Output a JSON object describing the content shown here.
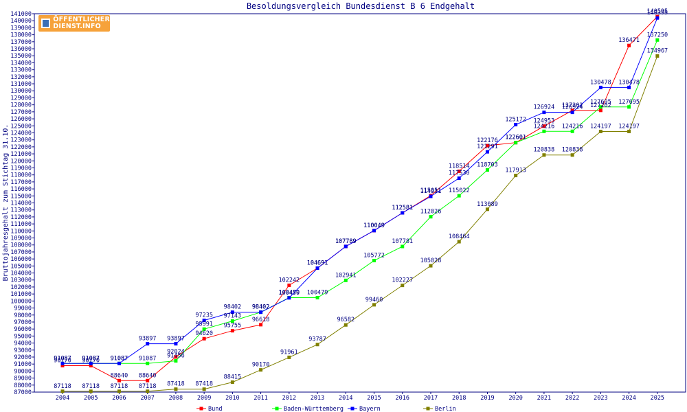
{
  "logo": {
    "line1": "ÖFFENTLICHER",
    "line2": "DIENST.INFO"
  },
  "chart_data": {
    "type": "line",
    "title": "Besoldungsvergleich Bundesdienst B 6 Endgehalt",
    "xlabel": "",
    "ylabel": "Bruttojahresgehalt zum Stichtag 31.10.",
    "ylim": [
      87000,
      141000
    ],
    "ytick_step": 1000,
    "grid": false,
    "legend_position": "bottom",
    "categories": [
      "2004",
      "2005",
      "2006",
      "2007",
      "2008",
      "2009",
      "2010",
      "2011",
      "2012",
      "2013",
      "2014",
      "2015",
      "2016",
      "2017",
      "2018",
      "2019",
      "2020",
      "2021",
      "2022",
      "2023",
      "2024",
      "2025"
    ],
    "series": [
      {
        "name": "Bund",
        "color": "#ff0000",
        "values": [
          90770,
          90770,
          88640,
          88640,
          92024,
          94620,
          95755,
          96618,
          102242,
          104691,
          107789,
          110049,
          112581,
          115051,
          118514,
          122176,
          122601,
          124953,
          127202,
          127202,
          136471,
          140595
        ]
      },
      {
        "name": "Baden-Württemberg",
        "color": "#00ff00",
        "values": [
          91087,
          91087,
          91087,
          91087,
          91456,
          95991,
          97143,
          98402,
          100479,
          100479,
          102941,
          105772,
          107781,
          112026,
          115022,
          118703,
          122601,
          124216,
          124216,
          127695,
          127695,
          137250
        ]
      },
      {
        "name": "Bayern",
        "color": "#0000ff",
        "values": [
          91087,
          91087,
          91087,
          93897,
          93897,
          97235,
          98402,
          98402,
          100450,
          104691,
          107789,
          110049,
          112581,
          114931,
          117530,
          121291,
          125172,
          126924,
          126924,
          130478,
          130478,
          140395
        ]
      },
      {
        "name": "Berlin",
        "color": "#808000",
        "values": [
          87118,
          87118,
          87118,
          87118,
          87418,
          87418,
          88415,
          90170,
          91961,
          93787,
          96582,
          99460,
          102227,
          105028,
          108464,
          113089,
          117913,
          120838,
          120838,
          124197,
          124197,
          134967
        ]
      }
    ]
  }
}
